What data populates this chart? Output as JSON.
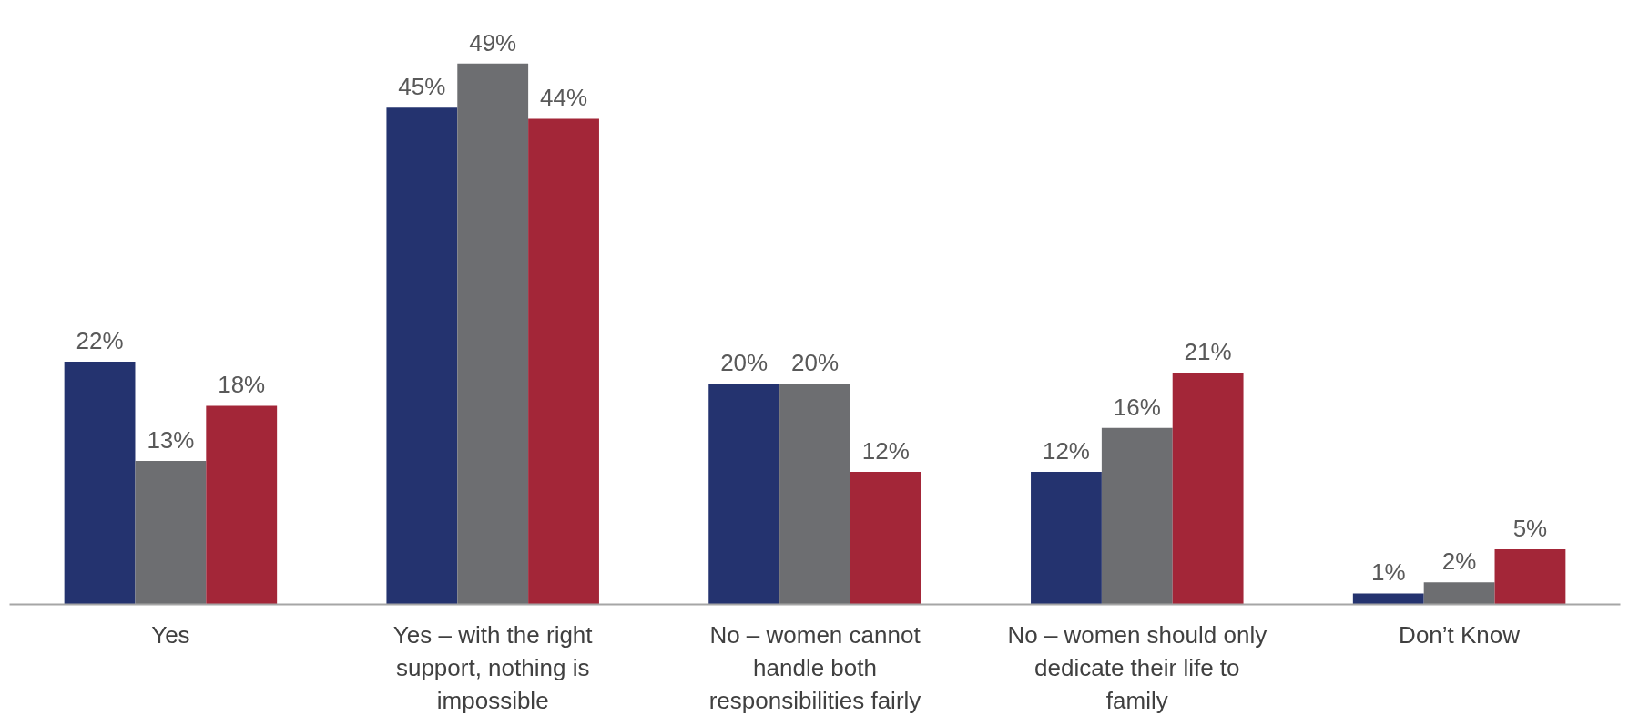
{
  "chart_data": {
    "type": "bar",
    "categories": [
      "Yes",
      "Yes – with the right support, nothing is impossible",
      "No – women cannot handle both responsibilities fairly",
      "No – women should only dedicate their life to family",
      "Don’t Know"
    ],
    "series": [
      {
        "color": "#24336f",
        "values": [
          22,
          45,
          20,
          12,
          1
        ],
        "value_labels": [
          "22%",
          "45%",
          "20%",
          "12%",
          "1%"
        ]
      },
      {
        "color": "#6d6e71",
        "values": [
          13,
          49,
          20,
          16,
          2
        ],
        "value_labels": [
          "13%",
          "49%",
          "20%",
          "16%",
          "2%"
        ]
      },
      {
        "color": "#a32638",
        "values": [
          18,
          44,
          12,
          21,
          5
        ],
        "value_labels": [
          "18%",
          "44%",
          "12%",
          "21%",
          "5%"
        ]
      }
    ]
  }
}
